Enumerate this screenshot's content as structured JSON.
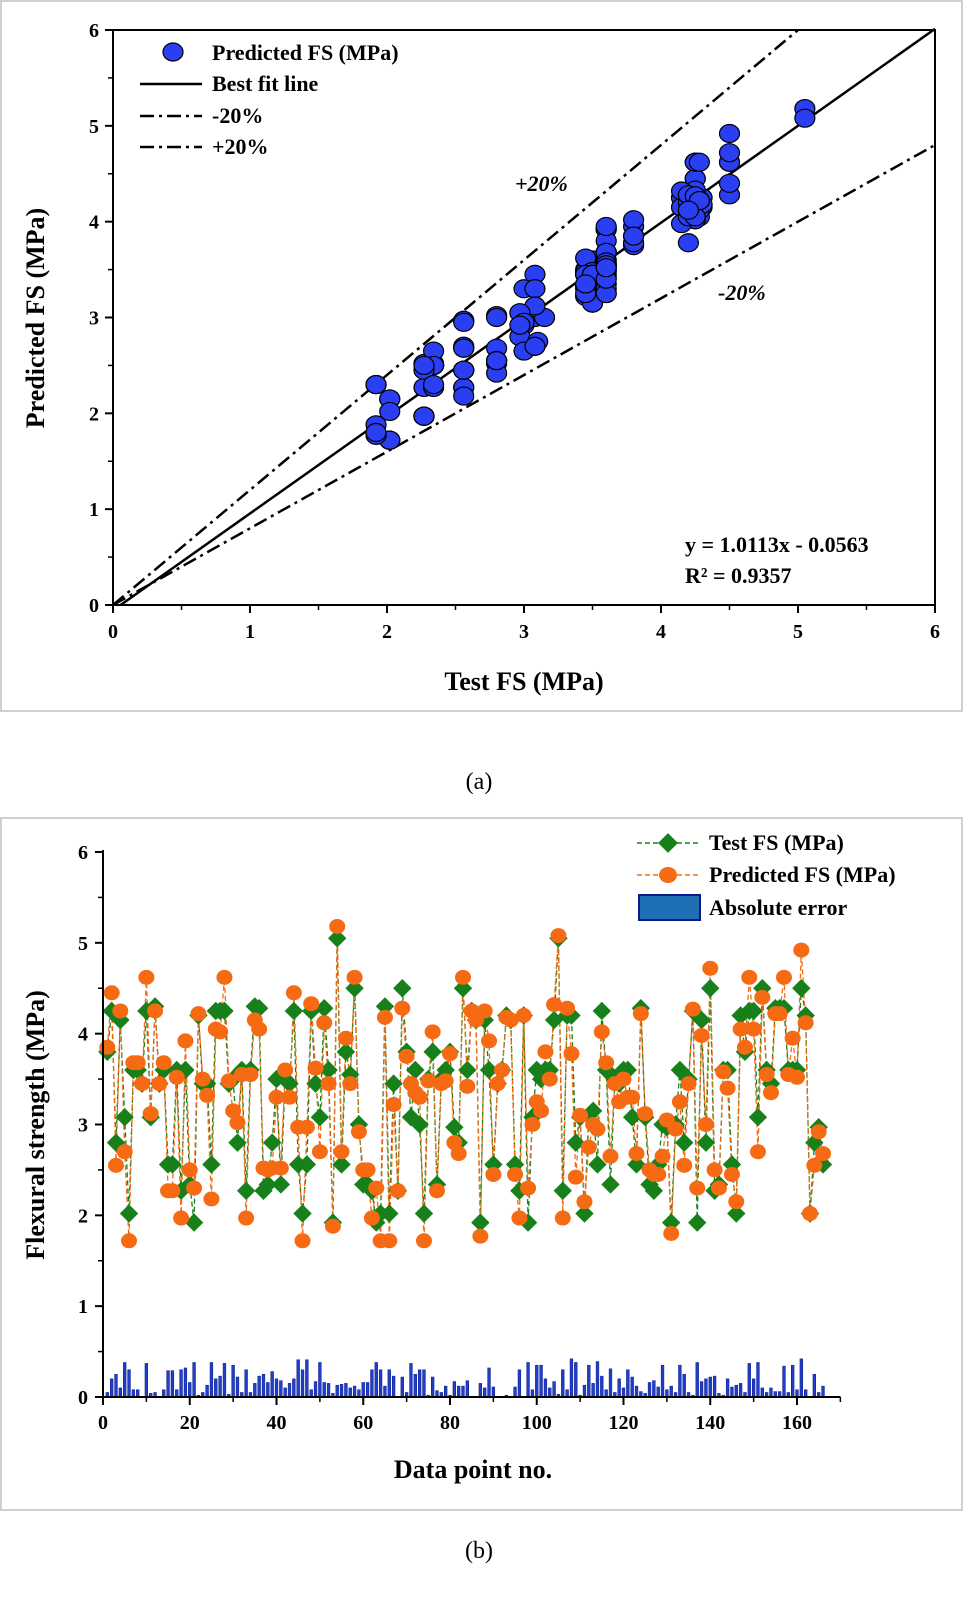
{
  "colors": {
    "scatter": "#2b3ff2",
    "test": "#17801a",
    "predicted": "#f56a12",
    "error": "#1f3fc8",
    "error_edge": "#0a1a8a",
    "frame": "#cfcfcf"
  },
  "chart_data": [
    {
      "type": "scatter",
      "caption": "(a)",
      "xlabel": "Test FS (MPa)",
      "ylabel": "Predicted FS (MPa)",
      "xlim": [
        0,
        6
      ],
      "ylim": [
        0,
        6
      ],
      "xticks": [
        "0",
        "1",
        "2",
        "3",
        "4",
        "5",
        "6"
      ],
      "yticks": [
        "0",
        "1",
        "2",
        "3",
        "4",
        "5",
        "6"
      ],
      "points_source": "Test FS (MPa) vs Predicted FS (MPa) from chart (b)",
      "legend": [
        "Predicted FS (MPa)",
        "Best fit line",
        "-20%",
        "+20%"
      ],
      "legend_position": "top-left",
      "fit": {
        "slope": 1.0113,
        "intercept": -0.0563,
        "r2": 0.9357
      },
      "equation_text": "y = 1.0113x - 0.0563",
      "r2_text": "R² = 0.9357",
      "annotations": {
        "plus": "+20%",
        "minus": "-20%"
      },
      "bounds": {
        "plus_factor": 1.2,
        "minus_factor": 0.8
      }
    },
    {
      "type": "line",
      "caption": "(b)",
      "xlabel": "Data point no.",
      "ylabel": "Flexural strength (MPa)",
      "xlim": [
        0,
        170
      ],
      "ylim": [
        0,
        6
      ],
      "xticks": [
        "0",
        "20",
        "40",
        "60",
        "80",
        "100",
        "120",
        "140",
        "160"
      ],
      "yticks": [
        "0",
        "1",
        "2",
        "3",
        "4",
        "5",
        "6"
      ],
      "legend_position": "top-right",
      "series": [
        {
          "name": "Test FS (MPa)",
          "values": [
            3.8,
            4.25,
            2.8,
            4.15,
            3.08,
            2.02,
            3.6,
            3.6,
            3.45,
            4.25,
            3.08,
            4.3,
            3.45,
            3.6,
            2.56,
            2.56,
            3.6,
            2.27,
            3.6,
            2.34,
            1.92,
            4.2,
            3.45,
            3.45,
            2.56,
            4.25,
            4.25,
            4.25,
            3.45,
            3.5,
            2.8,
            3.6,
            2.27,
            3.6,
            4.3,
            4.28,
            2.27,
            2.34,
            2.8,
            3.5,
            2.34,
            3.5,
            3.45,
            4.25,
            2.56,
            2.02,
            2.56,
            4.25,
            3.45,
            3.08,
            4.28,
            3.6,
            1.92,
            5.05,
            2.56,
            3.8,
            3.55,
            4.5,
            3.0,
            2.34,
            2.34,
            2.27,
            1.92,
            2.02,
            4.3,
            2.02,
            3.45,
            2.27,
            4.5,
            3.8,
            3.08,
            3.6,
            3.0,
            2.02,
            3.5,
            3.8,
            2.34,
            3.5,
            3.6,
            3.8,
            2.97,
            2.8,
            4.5,
            3.6,
            4.25,
            4.15,
            1.92,
            4.15,
            3.6,
            2.56,
            3.45,
            3.6,
            4.2,
            4.15,
            2.56,
            2.27,
            4.2,
            1.92,
            3.08,
            3.6,
            3.5,
            3.6,
            3.6,
            4.15,
            5.05,
            2.27,
            4.2,
            4.2,
            2.8,
            3.08,
            2.02,
            3.1,
            3.15,
            2.56,
            4.25,
            3.6,
            2.34,
            3.5,
            3.45,
            3.6,
            3.6,
            3.08,
            2.56,
            4.28,
            3.08,
            2.34,
            2.27,
            2.56,
            3.0,
            2.97,
            1.92,
            3.0,
            3.6,
            2.8,
            3.5,
            4.25,
            1.92,
            4.15,
            2.8,
            4.5,
            2.27,
            2.34,
            3.6,
            3.6,
            2.56,
            2.02,
            4.2,
            3.8,
            4.25,
            4.25,
            3.08,
            4.5,
            3.6,
            3.45,
            4.28,
            4.28,
            4.28,
            3.6,
            3.6,
            3.6,
            4.5,
            4.2,
            2.02,
            2.8,
            2.97,
            2.56
          ]
        },
        {
          "name": "Predicted FS (MPa)",
          "values": [
            3.85,
            4.45,
            2.55,
            4.25,
            2.7,
            1.72,
            3.68,
            3.68,
            3.45,
            4.62,
            3.12,
            4.25,
            3.45,
            3.68,
            2.27,
            2.27,
            3.52,
            1.97,
            3.92,
            2.5,
            2.3,
            4.22,
            3.5,
            3.32,
            2.18,
            4.05,
            4.02,
            4.62,
            3.48,
            3.15,
            3.02,
            3.55,
            1.97,
            3.55,
            4.15,
            4.05,
            2.52,
            2.5,
            2.52,
            3.3,
            2.52,
            3.6,
            3.3,
            4.45,
            2.97,
            1.72,
            2.97,
            4.33,
            3.62,
            2.7,
            4.12,
            3.45,
            1.88,
            5.18,
            2.7,
            3.95,
            3.45,
            4.62,
            2.92,
            2.5,
            2.5,
            1.97,
            2.3,
            1.72,
            4.18,
            1.72,
            3.22,
            2.27,
            4.28,
            3.75,
            3.45,
            3.35,
            3.3,
            1.72,
            3.48,
            4.02,
            2.27,
            3.45,
            3.48,
            3.78,
            2.8,
            2.68,
            4.62,
            3.42,
            4.25,
            4.15,
            1.77,
            4.25,
            3.92,
            2.45,
            3.45,
            3.6,
            4.18,
            4.15,
            2.45,
            1.97,
            4.2,
            2.3,
            3.0,
            3.25,
            3.15,
            3.8,
            3.5,
            4.32,
            5.08,
            1.97,
            4.28,
            3.78,
            2.42,
            3.1,
            2.15,
            2.75,
            3.0,
            2.95,
            4.02,
            3.68,
            2.65,
            3.45,
            3.25,
            3.5,
            3.3,
            3.3,
            2.68,
            4.22,
            3.12,
            2.5,
            2.45,
            2.45,
            2.65,
            3.05,
            1.8,
            2.95,
            3.25,
            2.55,
            3.45,
            4.27,
            2.3,
            3.98,
            3.0,
            4.72,
            2.5,
            2.3,
            3.58,
            3.4,
            2.45,
            2.15,
            4.05,
            3.85,
            4.62,
            4.05,
            2.7,
            4.4,
            3.55,
            3.35,
            4.22,
            4.22,
            4.62,
            3.55,
            3.95,
            3.52,
            4.92,
            4.12,
            2.02,
            2.55,
            2.92,
            2.68
          ]
        },
        {
          "name": "Absolute error",
          "type": "bar",
          "values": [
            0.05,
            0.2,
            0.25,
            0.1,
            0.38,
            0.3,
            0.08,
            0.08,
            0,
            0.37,
            0.04,
            0.05,
            0,
            0.08,
            0.29,
            0.29,
            0.08,
            0.3,
            0.32,
            0.16,
            0.38,
            0.02,
            0.05,
            0.13,
            0.38,
            0.2,
            0.23,
            0.37,
            0.03,
            0.35,
            0.22,
            0.05,
            0.3,
            0.05,
            0.15,
            0.23,
            0.25,
            0.16,
            0.28,
            0.2,
            0.18,
            0.1,
            0.15,
            0.2,
            0.41,
            0.3,
            0.41,
            0.08,
            0.17,
            0.38,
            0.16,
            0.15,
            0.04,
            0.13,
            0.14,
            0.15,
            0.1,
            0.12,
            0.08,
            0.16,
            0.16,
            0.3,
            0.38,
            0.3,
            0.12,
            0.3,
            0.23,
            0,
            0.22,
            0.05,
            0.37,
            0.25,
            0.3,
            0.3,
            0.02,
            0.22,
            0.07,
            0.05,
            0.12,
            0.02,
            0.17,
            0.12,
            0.12,
            0.18,
            0,
            0,
            0.15,
            0.1,
            0.32,
            0.11,
            0,
            0,
            0.02,
            0,
            0.11,
            0.3,
            0,
            0.38,
            0.08,
            0.35,
            0.35,
            0.2,
            0.1,
            0.17,
            0.03,
            0.3,
            0.08,
            0.42,
            0.38,
            0.02,
            0.13,
            0.35,
            0.15,
            0.39,
            0.23,
            0.08,
            0.31,
            0.05,
            0.2,
            0.1,
            0.3,
            0.22,
            0.12,
            0.06,
            0.04,
            0.16,
            0.18,
            0.11,
            0.35,
            0.08,
            0.12,
            0.05,
            0.35,
            0.25,
            0.05,
            0.02,
            0.38,
            0.17,
            0.2,
            0.22,
            0.23,
            0.04,
            0.02,
            0.2,
            0.11,
            0.13,
            0.15,
            0.05,
            0.37,
            0.2,
            0.38,
            0.1,
            0.05,
            0.1,
            0.06,
            0.06,
            0.34,
            0.05,
            0.35,
            0.08,
            0.42,
            0.08,
            0,
            0.25,
            0.05,
            0.12
          ]
        }
      ]
    }
  ]
}
